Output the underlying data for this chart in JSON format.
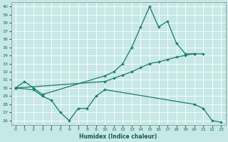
{
  "xlabel": "Humidex (Indice chaleur)",
  "background_color": "#c6e8e6",
  "grid_color": "#ffffff",
  "line_color": "#1a7a6a",
  "xlim": [
    -0.5,
    23.5
  ],
  "ylim": [
    25.5,
    40.5
  ],
  "yticks": [
    26,
    27,
    28,
    29,
    30,
    31,
    32,
    33,
    34,
    35,
    36,
    37,
    38,
    39,
    40
  ],
  "xticks": [
    0,
    1,
    2,
    3,
    4,
    5,
    6,
    7,
    8,
    9,
    10,
    11,
    12,
    13,
    14,
    15,
    16,
    17,
    18,
    19,
    20,
    21,
    22,
    23
  ],
  "curve1_x": [
    0,
    1,
    2,
    3,
    10,
    11,
    12,
    13,
    14,
    15,
    16,
    17,
    18,
    19,
    20
  ],
  "curve1_y": [
    30.0,
    30.8,
    30.0,
    29.2,
    31.5,
    32.0,
    33.0,
    35.0,
    37.5,
    40.0,
    37.5,
    38.2,
    35.5,
    34.2,
    34.2
  ],
  "curve2_x": [
    0,
    10,
    11,
    12,
    13,
    14,
    15,
    16,
    17,
    18,
    19,
    20,
    21
  ],
  "curve2_y": [
    30.0,
    30.8,
    31.2,
    31.6,
    32.0,
    32.5,
    33.0,
    33.2,
    33.5,
    33.8,
    34.0,
    34.2,
    34.2
  ],
  "curve3_x": [
    0,
    2,
    3,
    4,
    5,
    6,
    7,
    8,
    9,
    10,
    20,
    21,
    22,
    23
  ],
  "curve3_y": [
    30.0,
    29.8,
    29.0,
    28.5,
    27.0,
    26.0,
    27.5,
    27.5,
    29.0,
    29.8,
    28.0,
    27.5,
    26.0,
    25.8
  ],
  "marker": "+",
  "markersize": 3.5,
  "linewidth": 0.9
}
